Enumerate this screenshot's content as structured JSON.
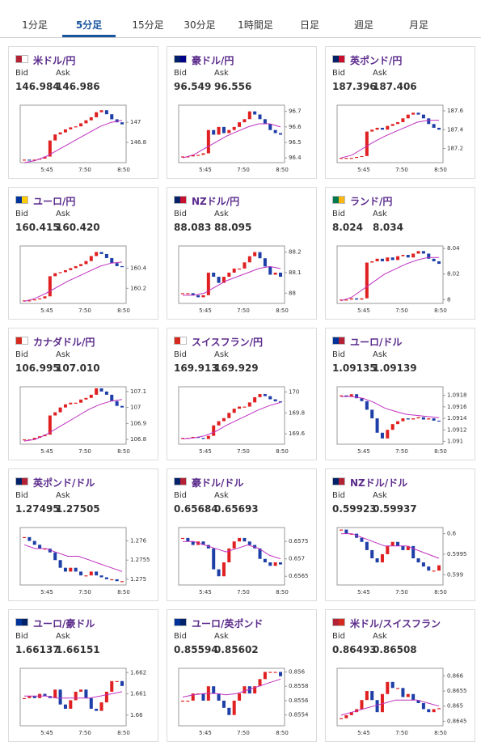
{
  "tabs": [
    "1分足",
    "5分足",
    "15分足",
    "30分足",
    "1時間足",
    "日足",
    "週足",
    "月足"
  ],
  "active_tab": 1,
  "labels": {
    "bid": "Bid",
    "ask": "Ask"
  },
  "pairs": [
    {
      "name": "米ドル/円",
      "bid": "146.984",
      "ask": "146.986",
      "x_labels": [
        "5:45",
        "7:50",
        "8:50"
      ],
      "ylim": [
        146.6,
        147.17
      ],
      "yticks": [
        146.8,
        147
      ],
      "closes": [
        146.63,
        146.62,
        146.63,
        146.64,
        146.66,
        146.82,
        146.88,
        146.9,
        146.93,
        146.95,
        146.96,
        146.99,
        147.02,
        147.05,
        147.1,
        147.12,
        147.08,
        147.03,
        147.0,
        146.98
      ],
      "ma": [
        146.6,
        146.62,
        146.66,
        146.72,
        146.78,
        146.84,
        146.9,
        146.96,
        147.0,
        147.02
      ]
    },
    {
      "name": "豪ドル/円",
      "bid": "96.549",
      "ask": "96.556",
      "x_labels": [
        "5:45",
        "7:50",
        "8:50"
      ],
      "ylim": [
        96.37,
        96.74
      ],
      "yticks": [
        96.4,
        96.5,
        96.6,
        96.7
      ],
      "closes": [
        96.41,
        96.41,
        96.42,
        96.42,
        96.43,
        96.58,
        96.55,
        96.6,
        96.56,
        96.58,
        96.6,
        96.63,
        96.65,
        96.7,
        96.68,
        96.65,
        96.62,
        96.58,
        96.56,
        96.55
      ],
      "ma": [
        96.4,
        96.42,
        96.46,
        96.5,
        96.54,
        96.57,
        96.6,
        96.62,
        96.62,
        96.6
      ]
    },
    {
      "name": "英ポンド/円",
      "bid": "187.396",
      "ask": "187.406",
      "x_labels": [
        "5:45",
        "7:50",
        "8:50"
      ],
      "ylim": [
        187.05,
        187.66
      ],
      "yticks": [
        187.2,
        187.4,
        187.6
      ],
      "closes": [
        187.1,
        187.1,
        187.1,
        187.11,
        187.12,
        187.38,
        187.4,
        187.42,
        187.4,
        187.44,
        187.46,
        187.48,
        187.52,
        187.56,
        187.58,
        187.56,
        187.52,
        187.46,
        187.42,
        187.4
      ],
      "ma": [
        187.1,
        187.13,
        187.2,
        187.27,
        187.33,
        187.38,
        187.43,
        187.48,
        187.5,
        187.5
      ]
    },
    {
      "name": "ユーロ/円",
      "bid": "160.415",
      "ask": "160.420",
      "x_labels": [
        "5:45",
        "7:50",
        "8:50"
      ],
      "ylim": [
        160.05,
        160.62
      ],
      "yticks": [
        160.2,
        160.4
      ],
      "closes": [
        160.08,
        160.08,
        160.09,
        160.1,
        160.12,
        160.32,
        160.35,
        160.36,
        160.38,
        160.4,
        160.42,
        160.44,
        160.47,
        160.52,
        160.56,
        160.54,
        160.5,
        160.45,
        160.42,
        160.41
      ],
      "ma": [
        160.07,
        160.1,
        160.15,
        160.21,
        160.27,
        160.32,
        160.37,
        160.42,
        160.45,
        160.46
      ]
    },
    {
      "name": "NZドル/円",
      "bid": "88.083",
      "ask": "88.095",
      "x_labels": [
        "5:45",
        "7:50",
        "8:50"
      ],
      "ylim": [
        87.95,
        88.23
      ],
      "yticks": [
        88,
        88.1,
        88.2
      ],
      "closes": [
        88.0,
        88.0,
        87.99,
        87.98,
        87.99,
        88.1,
        88.08,
        88.05,
        88.08,
        88.1,
        88.12,
        88.12,
        88.15,
        88.18,
        88.2,
        88.17,
        88.13,
        88.09,
        88.1,
        88.08
      ],
      "ma": [
        87.99,
        87.99,
        88.0,
        88.03,
        88.06,
        88.08,
        88.1,
        88.12,
        88.13,
        88.12
      ]
    },
    {
      "name": "ランド/円",
      "bid": "8.024",
      "ask": "8.034",
      "x_labels": [
        "5:45",
        "7:50",
        "8:50"
      ],
      "ylim": [
        7.997,
        8.042
      ],
      "yticks": [
        8,
        8.02,
        8.04
      ],
      "closes": [
        8.0,
        8.0,
        8.001,
        8.0,
        8.001,
        8.029,
        8.03,
        8.032,
        8.03,
        8.033,
        8.031,
        8.034,
        8.035,
        8.033,
        8.036,
        8.038,
        8.036,
        8.032,
        8.03,
        8.028
      ],
      "ma": [
        7.999,
        8.002,
        8.008,
        8.014,
        8.02,
        8.024,
        8.028,
        8.031,
        8.033,
        8.033
      ]
    },
    {
      "name": "カナダドル/円",
      "bid": "106.995",
      "ask": "107.010",
      "x_labels": [
        "5:45",
        "7:50",
        "8:50"
      ],
      "ylim": [
        106.77,
        107.13
      ],
      "yticks": [
        106.8,
        106.9,
        107,
        107.1
      ],
      "closes": [
        106.8,
        106.8,
        106.81,
        106.82,
        106.83,
        106.95,
        106.97,
        107.0,
        107.02,
        107.03,
        107.03,
        107.05,
        107.06,
        107.08,
        107.12,
        107.1,
        107.08,
        107.04,
        107.01,
        107.0
      ],
      "ma": [
        106.79,
        106.8,
        106.83,
        106.87,
        106.91,
        106.95,
        106.99,
        107.02,
        107.04,
        107.05
      ]
    },
    {
      "name": "スイスフラン/円",
      "bid": "169.913",
      "ask": "169.929",
      "x_labels": [
        "5:45",
        "7:50",
        "8:50"
      ],
      "ylim": [
        169.5,
        170.05
      ],
      "yticks": [
        169.6,
        169.8,
        170
      ],
      "closes": [
        169.56,
        169.56,
        169.57,
        169.56,
        169.55,
        169.58,
        169.68,
        169.72,
        169.75,
        169.8,
        169.84,
        169.86,
        169.86,
        169.9,
        169.95,
        169.98,
        169.96,
        169.93,
        169.91,
        169.9
      ],
      "ma": [
        169.55,
        169.56,
        169.58,
        169.62,
        169.68,
        169.73,
        169.78,
        169.83,
        169.87,
        169.9
      ]
    },
    {
      "name": "ユーロ/ドル",
      "bid": "1.09135",
      "ask": "1.09139",
      "x_labels": [
        "5:45",
        "7:50",
        "8:50"
      ],
      "ylim": [
        1.09095,
        1.09195
      ],
      "yticks": [
        1.091,
        1.0912,
        1.0914,
        1.0916,
        1.0918
      ],
      "closes": [
        1.0918,
        1.09178,
        1.09182,
        1.09175,
        1.0917,
        1.09155,
        1.0914,
        1.09115,
        1.09105,
        1.0912,
        1.0913,
        1.09135,
        1.0914,
        1.09138,
        1.0914,
        1.09142,
        1.09138,
        1.0914,
        1.09136,
        1.09135
      ],
      "ma": [
        1.09178,
        1.09178,
        1.09175,
        1.09168,
        1.09158,
        1.09152,
        1.09147,
        1.09145,
        1.09143,
        1.09141
      ]
    },
    {
      "name": "英ポンド/ドル",
      "bid": "1.27495",
      "ask": "1.27505",
      "x_labels": [
        "5:45",
        "7:50",
        "8:50"
      ],
      "ylim": [
        1.27485,
        1.27635
      ],
      "yticks": [
        1.275,
        1.2755,
        1.276
      ],
      "closes": [
        1.2761,
        1.276,
        1.2759,
        1.2758,
        1.2758,
        1.2757,
        1.2755,
        1.2753,
        1.2752,
        1.2753,
        1.2752,
        1.2751,
        1.2751,
        1.2752,
        1.2751,
        1.27505,
        1.275,
        1.275,
        1.27495,
        1.27495
      ],
      "ma": [
        1.2759,
        1.2758,
        1.2758,
        1.2757,
        1.2756,
        1.2756,
        1.2755,
        1.2754,
        1.2753,
        1.2752
      ]
    },
    {
      "name": "豪ドル/ドル",
      "bid": "0.65684",
      "ask": "0.65693",
      "x_labels": [
        "5:45",
        "7:50",
        "8:50"
      ],
      "ylim": [
        0.65625,
        0.6579
      ],
      "yticks": [
        0.6565,
        0.657,
        0.6575
      ],
      "closes": [
        0.6576,
        0.6575,
        0.6574,
        0.6575,
        0.6574,
        0.6573,
        0.6567,
        0.6565,
        0.6569,
        0.6573,
        0.6575,
        0.6576,
        0.6575,
        0.6574,
        0.6573,
        0.657,
        0.6569,
        0.6568,
        0.6569,
        0.65684
      ],
      "ma": [
        0.6575,
        0.6575,
        0.6574,
        0.6573,
        0.6572,
        0.6573,
        0.6574,
        0.6573,
        0.6571,
        0.657
      ]
    },
    {
      "name": "NZドル/ドル",
      "bid": "0.59923",
      "ask": "0.59937",
      "x_labels": [
        "5:45",
        "7:50",
        "8:50"
      ],
      "ylim": [
        0.59875,
        0.60015
      ],
      "yticks": [
        0.599,
        0.5995,
        0.6
      ],
      "closes": [
        0.6001,
        0.6,
        0.6,
        0.5999,
        0.5998,
        0.5996,
        0.5994,
        0.5993,
        0.5995,
        0.5997,
        0.5998,
        0.5997,
        0.5996,
        0.5997,
        0.5994,
        0.5993,
        0.5992,
        0.5991,
        0.5991,
        0.59923
      ],
      "ma": [
        0.6,
        0.6,
        0.5999,
        0.5998,
        0.5997,
        0.5997,
        0.5997,
        0.5996,
        0.5995,
        0.5994
      ]
    },
    {
      "name": "ユーロ/豪ドル",
      "bid": "1.66137",
      "ask": "1.66151",
      "x_labels": [
        "5:45",
        "7:50",
        "8:50"
      ],
      "ylim": [
        1.6595,
        1.6622
      ],
      "yticks": [
        1.66,
        1.661,
        1.662
      ],
      "closes": [
        1.6608,
        1.6609,
        1.6608,
        1.661,
        1.6609,
        1.6608,
        1.6612,
        1.6605,
        1.6603,
        1.6607,
        1.6611,
        1.6612,
        1.6608,
        1.6603,
        1.6602,
        1.6606,
        1.6611,
        1.6616,
        1.6616,
        1.66137
      ],
      "ma": [
        1.6609,
        1.6609,
        1.6609,
        1.6608,
        1.6608,
        1.6608,
        1.6608,
        1.6609,
        1.661,
        1.6611
      ]
    },
    {
      "name": "ユーロ/英ポンド",
      "bid": "0.85594",
      "ask": "0.85602",
      "x_labels": [
        "5:45",
        "7:50",
        "8:50"
      ],
      "ylim": [
        0.85525,
        0.85605
      ],
      "yticks": [
        0.8554,
        0.8556,
        0.8558,
        0.856
      ],
      "closes": [
        0.8556,
        0.8556,
        0.8557,
        0.8557,
        0.8556,
        0.8558,
        0.8557,
        0.8556,
        0.8555,
        0.8554,
        0.8556,
        0.8557,
        0.8558,
        0.8557,
        0.8558,
        0.8559,
        0.856,
        0.856,
        0.856,
        0.85594
      ],
      "ma": [
        0.85565,
        0.85568,
        0.8557,
        0.8557,
        0.85568,
        0.8557,
        0.85575,
        0.8558,
        0.85585,
        0.8559
      ]
    },
    {
      "name": "米ドル/スイスフラン",
      "bid": "0.86493",
      "ask": "0.86508",
      "x_labels": [
        "5:45",
        "7:50",
        "8:50"
      ],
      "ylim": [
        0.86435,
        0.86625
      ],
      "yticks": [
        0.8645,
        0.865,
        0.8655,
        0.866
      ],
      "closes": [
        0.8646,
        0.8647,
        0.8648,
        0.8649,
        0.8652,
        0.8655,
        0.8652,
        0.8648,
        0.8654,
        0.8658,
        0.8656,
        0.8656,
        0.8653,
        0.8654,
        0.8652,
        0.8651,
        0.8649,
        0.8648,
        0.8649,
        0.86493
      ],
      "ma": [
        0.8647,
        0.8648,
        0.8649,
        0.865,
        0.8651,
        0.8652,
        0.8652,
        0.8652,
        0.8651,
        0.865
      ]
    }
  ]
}
